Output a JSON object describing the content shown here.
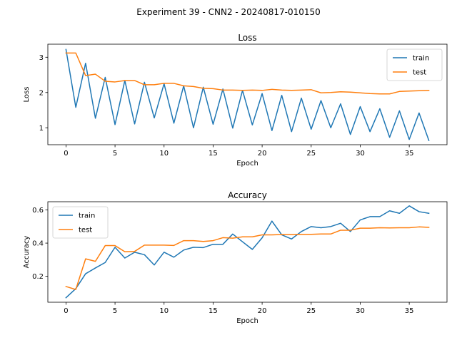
{
  "figure": {
    "suptitle": "Experiment 39 - CNN2 - 20240817-010150"
  },
  "chart_data": [
    {
      "type": "line",
      "title": "Loss",
      "xlabel": "Epoch",
      "ylabel": "Loss",
      "xlim": [
        -1.85,
        38.85
      ],
      "ylim": [
        0.52,
        3.37
      ],
      "xticks": [
        0,
        5,
        10,
        15,
        20,
        25,
        30,
        35
      ],
      "yticks": [
        1,
        2,
        3
      ],
      "grid": false,
      "legend_position": "upper right",
      "x": [
        0,
        1,
        2,
        3,
        4,
        5,
        6,
        7,
        8,
        9,
        10,
        11,
        12,
        13,
        14,
        15,
        16,
        17,
        18,
        19,
        20,
        21,
        22,
        23,
        24,
        25,
        26,
        27,
        28,
        29,
        30,
        31,
        32,
        33,
        34,
        35,
        36,
        37
      ],
      "series": [
        {
          "name": "train",
          "color": "#1f77b4",
          "values": [
            3.22,
            1.58,
            2.83,
            1.27,
            2.43,
            1.09,
            2.34,
            1.11,
            2.29,
            1.28,
            2.25,
            1.13,
            2.19,
            1.0,
            2.15,
            1.1,
            2.1,
            0.99,
            2.06,
            1.08,
            1.97,
            0.92,
            1.92,
            0.89,
            1.84,
            0.96,
            1.77,
            1.0,
            1.68,
            0.81,
            1.6,
            0.89,
            1.54,
            0.73,
            1.48,
            0.67,
            1.42,
            0.64
          ]
        },
        {
          "name": "test",
          "color": "#ff7f0e",
          "values": [
            3.12,
            3.12,
            2.48,
            2.52,
            2.32,
            2.3,
            2.34,
            2.34,
            2.22,
            2.22,
            2.26,
            2.26,
            2.19,
            2.17,
            2.12,
            2.11,
            2.07,
            2.07,
            2.06,
            2.07,
            2.06,
            2.09,
            2.07,
            2.06,
            2.07,
            2.08,
            1.99,
            2.0,
            2.02,
            2.01,
            1.99,
            1.97,
            1.96,
            1.96,
            2.03,
            2.04,
            2.05,
            2.06
          ]
        }
      ]
    },
    {
      "type": "line",
      "title": "Accuracy",
      "xlabel": "Epoch",
      "ylabel": "Accuracy",
      "xlim": [
        -1.85,
        38.85
      ],
      "ylim": [
        0.043,
        0.65
      ],
      "xticks": [
        0,
        5,
        10,
        15,
        20,
        25,
        30,
        35
      ],
      "yticks": [
        0.2,
        0.4,
        0.6
      ],
      "grid": false,
      "legend_position": "upper left",
      "x": [
        0,
        1,
        2,
        3,
        4,
        5,
        6,
        7,
        8,
        9,
        10,
        11,
        12,
        13,
        14,
        15,
        16,
        17,
        18,
        19,
        20,
        21,
        22,
        23,
        24,
        25,
        26,
        27,
        28,
        29,
        30,
        31,
        32,
        33,
        34,
        35,
        36,
        37
      ],
      "series": [
        {
          "name": "train",
          "color": "#1f77b4",
          "values": [
            0.07,
            0.125,
            0.215,
            0.25,
            0.283,
            0.375,
            0.31,
            0.345,
            0.33,
            0.268,
            0.345,
            0.315,
            0.358,
            0.375,
            0.373,
            0.393,
            0.393,
            0.455,
            0.408,
            0.362,
            0.432,
            0.533,
            0.45,
            0.425,
            0.47,
            0.5,
            0.493,
            0.5,
            0.52,
            0.47,
            0.54,
            0.56,
            0.56,
            0.595,
            0.58,
            0.625,
            0.59,
            0.58
          ]
        },
        {
          "name": "test",
          "color": "#ff7f0e",
          "values": [
            0.138,
            0.12,
            0.305,
            0.29,
            0.385,
            0.385,
            0.348,
            0.35,
            0.388,
            0.388,
            0.388,
            0.386,
            0.415,
            0.415,
            0.41,
            0.415,
            0.433,
            0.43,
            0.438,
            0.438,
            0.45,
            0.45,
            0.452,
            0.452,
            0.453,
            0.453,
            0.455,
            0.455,
            0.478,
            0.478,
            0.49,
            0.49,
            0.493,
            0.492,
            0.493,
            0.493,
            0.498,
            0.495
          ]
        }
      ]
    }
  ]
}
